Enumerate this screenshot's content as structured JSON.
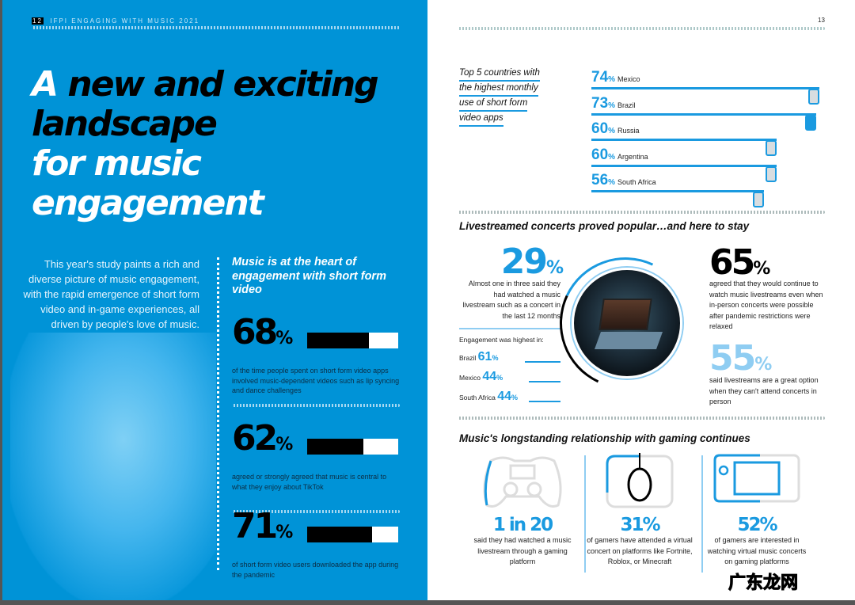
{
  "left_page": {
    "page_number": "12",
    "header": "IFPI ENGAGING WITH MUSIC 2021",
    "title": {
      "word_a": "A",
      "line1": "new and exciting",
      "line2": "landscape",
      "line3": "for music",
      "line4": "engagement"
    },
    "intro": "This year's study paints a rich and diverse picture of music engagement, with the rapid emergence of short form video and in-game experiences, all driven by people's love of music.",
    "subheading": "Music is at the heart of engagement with short form video",
    "stats": [
      {
        "value": "68",
        "unit": "%",
        "percent": 68,
        "caption": "of the time people spent on short form video apps involved music-dependent videos such as lip syncing and dance challenges"
      },
      {
        "value": "62",
        "unit": "%",
        "percent": 62,
        "caption": "agreed or strongly agreed that music is central to what they enjoy about TikTok"
      },
      {
        "value": "71",
        "unit": "%",
        "percent": 71,
        "caption": "of short form video users downloaded the app during the pandemic"
      }
    ]
  },
  "right_page": {
    "page_number": "13",
    "countries_title": [
      "Top 5 countries with",
      "the highest monthly",
      "use of short form",
      "video apps"
    ],
    "countries": [
      {
        "value": "74",
        "unit": "%",
        "name": "Mexico",
        "percent": 74
      },
      {
        "value": "73",
        "unit": "%",
        "name": "Brazil",
        "percent": 73
      },
      {
        "value": "60",
        "unit": "%",
        "name": "Russia",
        "percent": 60
      },
      {
        "value": "60",
        "unit": "%",
        "name": "Argentina",
        "percent": 60
      },
      {
        "value": "56",
        "unit": "%",
        "name": "South Africa",
        "percent": 56
      }
    ],
    "livestream": {
      "heading": "Livestreamed concerts proved popular…and here to stay",
      "stat1": {
        "value": "29",
        "unit": "%",
        "caption": "Almost one in three said they had watched a music livestream such as a concert in the last 12 months"
      },
      "engagement_label": "Engagement was highest in:",
      "engagement": [
        {
          "name": "Brazil",
          "value": "61",
          "unit": "%"
        },
        {
          "name": "Mexico",
          "value": "44",
          "unit": "%"
        },
        {
          "name": "South Africa",
          "value": "44",
          "unit": "%"
        }
      ],
      "stat2": {
        "value": "65",
        "unit": "%",
        "caption": "agreed that they would continue to watch music livestreams even when in-person concerts were possible after pandemic restrictions were relaxed"
      },
      "stat3": {
        "value": "55",
        "unit": "%",
        "caption": "said livestreams are a great option when they can't attend concerts in person"
      }
    },
    "gaming": {
      "heading": "Music's longstanding relationship with gaming continues",
      "items": [
        {
          "value": "1 in 20",
          "caption": "said they had watched a music livestream through a gaming platform",
          "icon": "gamepad-icon"
        },
        {
          "value": "31%",
          "caption": "of gamers have attended a virtual concert on platforms like Fortnite, Roblox, or Minecraft",
          "icon": "mouse-icon"
        },
        {
          "value": "52%",
          "caption": "of gamers are interested in watching virtual music concerts on gaming platforms",
          "icon": "handheld-console-icon"
        }
      ]
    },
    "watermark": "广东龙网"
  },
  "colors": {
    "blue": "#0093d7",
    "accent": "#1a9ae0",
    "light_blue": "#8fcdf2"
  }
}
